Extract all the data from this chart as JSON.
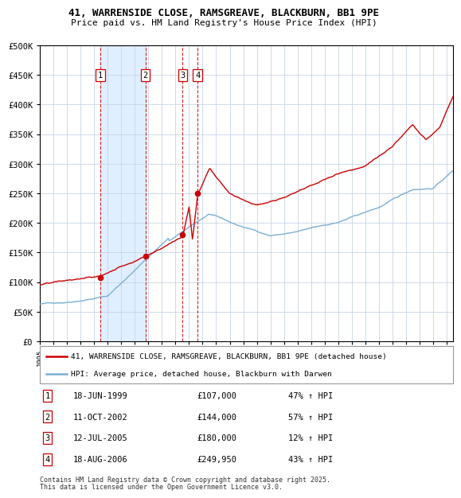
{
  "title_line1": "41, WARRENSIDE CLOSE, RAMSGREAVE, BLACKBURN, BB1 9PE",
  "title_line2": "Price paid vs. HM Land Registry's House Price Index (HPI)",
  "legend_label_red": "41, WARRENSIDE CLOSE, RAMSGREAVE, BLACKBURN, BB1 9PE (detached house)",
  "legend_label_blue": "HPI: Average price, detached house, Blackburn with Darwen",
  "footer_line1": "Contains HM Land Registry data © Crown copyright and database right 2025.",
  "footer_line2": "This data is licensed under the Open Government Licence v3.0.",
  "transactions": [
    {
      "num": 1,
      "date": "18-JUN-1999",
      "price": 107000,
      "hpi_pct": "47% ↑ HPI",
      "x_year": 1999.46
    },
    {
      "num": 2,
      "date": "11-OCT-2002",
      "price": 144000,
      "hpi_pct": "57% ↑ HPI",
      "x_year": 2002.78
    },
    {
      "num": 3,
      "date": "12-JUL-2005",
      "price": 180000,
      "hpi_pct": "12% ↑ HPI",
      "x_year": 2005.53
    },
    {
      "num": 4,
      "date": "18-AUG-2006",
      "price": 249950,
      "hpi_pct": "43% ↑ HPI",
      "x_year": 2006.63
    }
  ],
  "ylim": [
    0,
    500000
  ],
  "xlim_start": 1995.0,
  "xlim_end": 2025.5,
  "red_color": "#cc0000",
  "blue_color": "#7bafd4",
  "grid_color": "#c8d4e8",
  "shade_color": "#ddeeff"
}
